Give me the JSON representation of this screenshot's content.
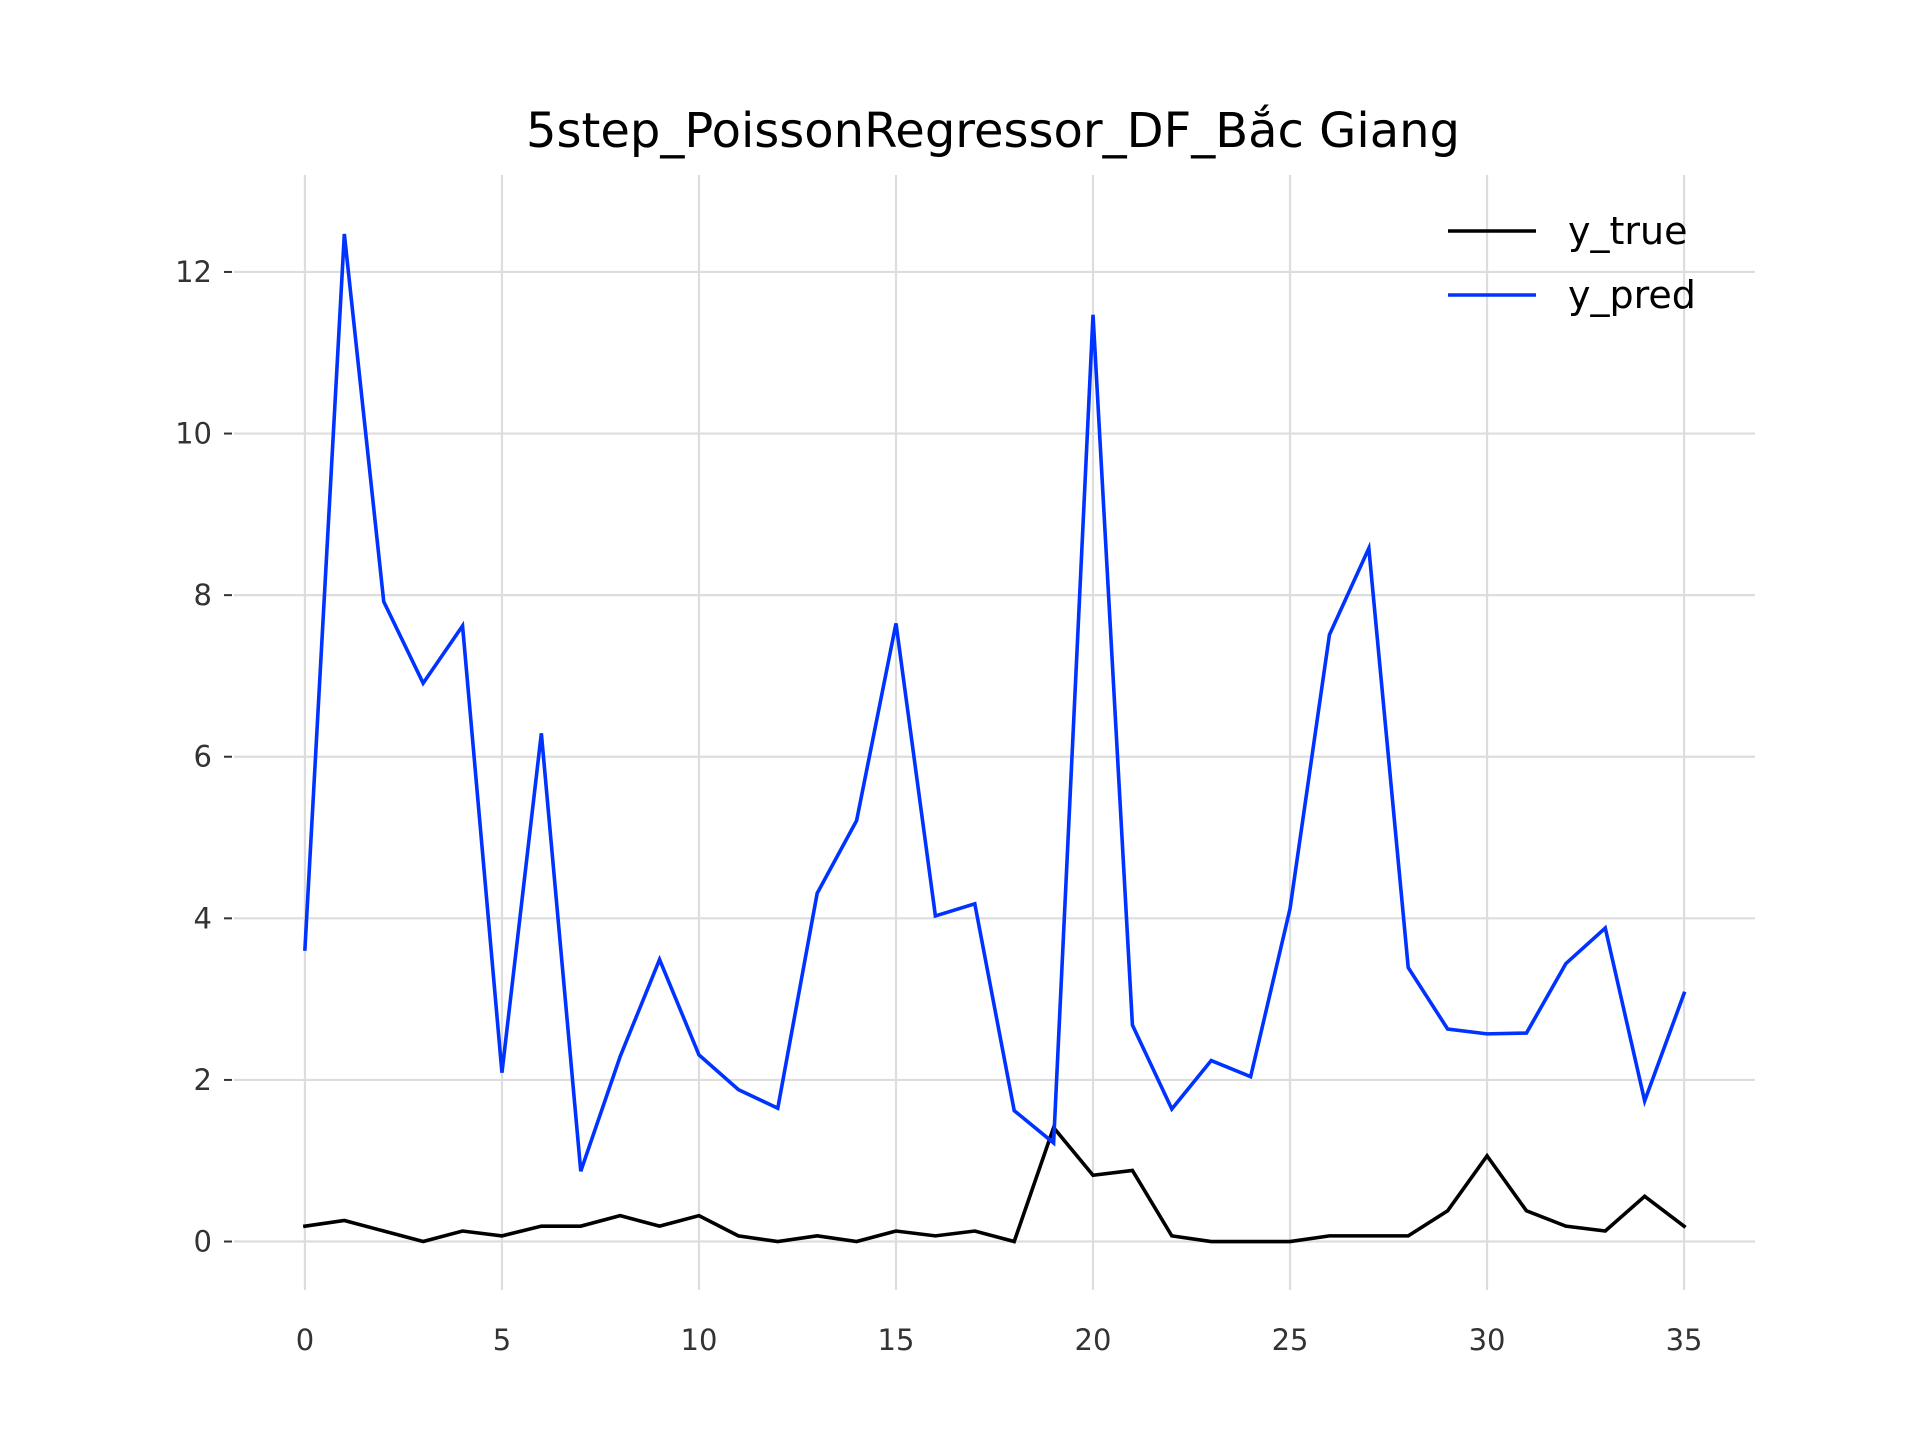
{
  "chart_data": {
    "type": "line",
    "title": "5step_PoissonRegressor_DF_Bắc Giang",
    "xlabel": "",
    "ylabel": "",
    "xlim": [
      -1.8,
      36.8
    ],
    "ylim": [
      -0.6,
      13.2
    ],
    "xticks": [
      0,
      5,
      10,
      15,
      20,
      25,
      30,
      35
    ],
    "yticks": [
      0,
      2,
      4,
      6,
      8,
      10,
      12
    ],
    "grid": true,
    "legend_position": "top-right",
    "x": [
      0,
      1,
      2,
      3,
      4,
      5,
      6,
      7,
      8,
      9,
      10,
      11,
      12,
      13,
      14,
      15,
      16,
      17,
      18,
      19,
      20,
      21,
      22,
      23,
      24,
      25,
      26,
      27,
      28,
      29,
      30,
      31,
      32,
      33,
      34,
      35
    ],
    "series": [
      {
        "name": "y_true",
        "color": "#000000",
        "values": [
          0.19,
          0.26,
          0.13,
          0.0,
          0.13,
          0.07,
          0.19,
          0.19,
          0.32,
          0.19,
          0.32,
          0.07,
          0.0,
          0.07,
          0.0,
          0.13,
          0.07,
          0.13,
          0.0,
          1.41,
          0.82,
          0.88,
          0.07,
          0.0,
          0.0,
          0.0,
          0.07,
          0.07,
          0.07,
          0.38,
          1.06,
          0.38,
          0.19,
          0.13,
          0.56,
          0.19
        ]
      },
      {
        "name": "y_pred",
        "color": "#0033ff",
        "values": [
          3.62,
          12.47,
          7.92,
          6.91,
          7.62,
          2.09,
          6.29,
          0.87,
          2.29,
          3.49,
          2.31,
          1.88,
          1.65,
          4.31,
          5.21,
          7.65,
          4.03,
          4.18,
          1.62,
          1.22,
          11.47,
          2.68,
          1.64,
          2.24,
          2.04,
          4.12,
          7.51,
          8.58,
          3.39,
          2.63,
          2.57,
          2.58,
          3.44,
          3.88,
          1.74,
          3.07
        ]
      }
    ]
  }
}
